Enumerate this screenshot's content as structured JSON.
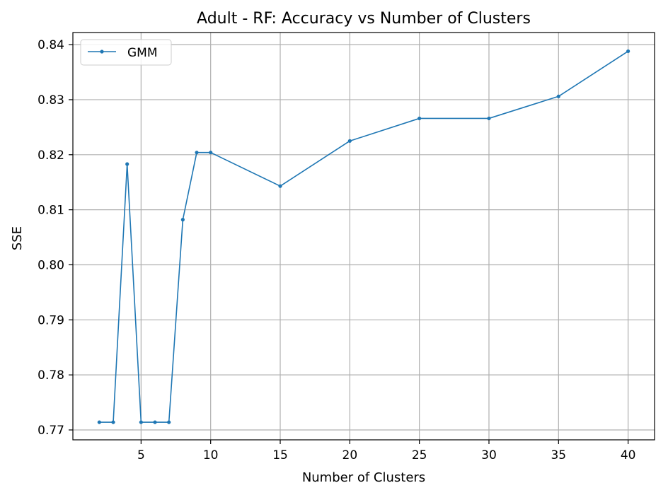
{
  "chart_data": {
    "type": "line",
    "title": "Adult - RF: Accuracy vs Number of Clusters",
    "xlabel": "Number of Clusters",
    "ylabel": "SSE",
    "xlim": [
      0.1,
      41.9
    ],
    "ylim": [
      0.7682,
      0.8422
    ],
    "x_ticks": [
      5,
      10,
      15,
      20,
      25,
      30,
      35,
      40
    ],
    "y_ticks": [
      0.77,
      0.78,
      0.79,
      0.8,
      0.81,
      0.82,
      0.83,
      0.84
    ],
    "x_tick_labels": [
      "5",
      "10",
      "15",
      "20",
      "25",
      "30",
      "35",
      "40"
    ],
    "y_tick_labels": [
      "0.77",
      "0.78",
      "0.79",
      "0.80",
      "0.81",
      "0.82",
      "0.83",
      "0.84"
    ],
    "grid": true,
    "legend_position": "top-left",
    "series": [
      {
        "name": "GMM",
        "color": "#1f77b4",
        "x": [
          2,
          3,
          4,
          5,
          6,
          7,
          8,
          9,
          10,
          15,
          20,
          25,
          30,
          35,
          40
        ],
        "y": [
          0.7714,
          0.7714,
          0.8183,
          0.7714,
          0.7714,
          0.7714,
          0.8082,
          0.8204,
          0.8204,
          0.8143,
          0.8225,
          0.8266,
          0.8266,
          0.8306,
          0.8388
        ]
      }
    ]
  }
}
